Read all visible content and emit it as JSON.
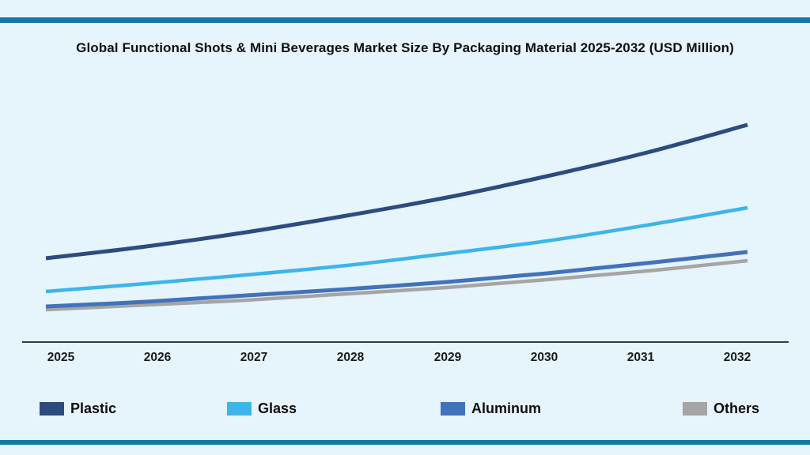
{
  "colors": {
    "background": "#e6f4fb",
    "accent_bar": "#1477a8",
    "axis_line": "#2c3e49",
    "title_text": "#0e1112"
  },
  "chart_data": {
    "type": "line",
    "title": "Global Functional Shots & Mini Beverages Market Size By Packaging Material 2025-2032 (USD Million)",
    "units": "USD Million",
    "x": [
      "2025",
      "2026",
      "2027",
      "2028",
      "2029",
      "2030",
      "2031",
      "2032"
    ],
    "series": [
      {
        "name": "Plastic",
        "color": "#2d4b7d",
        "values": [
          530,
          605,
          695,
          800,
          915,
          1050,
          1200,
          1375
        ]
      },
      {
        "name": "Glass",
        "color": "#3db5e9",
        "values": [
          320,
          370,
          425,
          485,
          560,
          640,
          740,
          850
        ]
      },
      {
        "name": "Aluminum",
        "color": "#4272bb",
        "values": [
          225,
          255,
          295,
          335,
          380,
          435,
          500,
          570
        ]
      },
      {
        "name": "Others",
        "color": "#a5a5a5",
        "values": [
          205,
          235,
          265,
          305,
          345,
          395,
          450,
          515
        ]
      }
    ],
    "xlabel": "",
    "ylabel": "",
    "ylim": [
      0,
      1515
    ],
    "grid": false,
    "y_axis_labels_shown": false,
    "legend_position": "bottom"
  }
}
